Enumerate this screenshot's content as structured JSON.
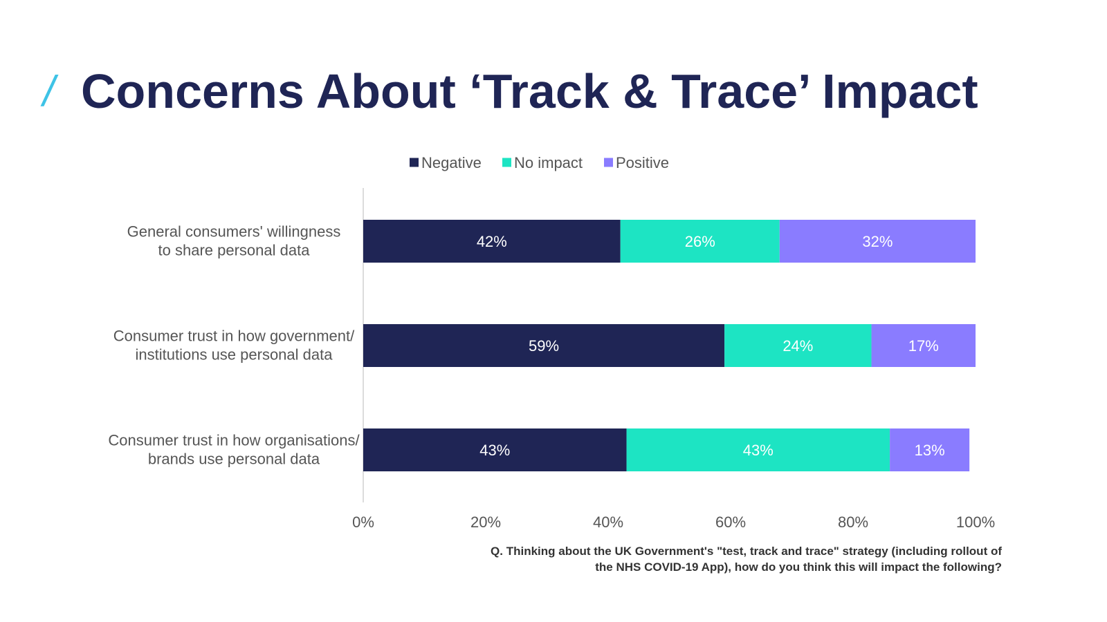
{
  "slide": {
    "slash": "/",
    "title": "Concerns About ‘Track & Trace’ Impact",
    "footnote": "Q. Thinking about the UK Government's \"test, track and trace\" strategy (including rollout of the NHS COVID-19 App), how do you think this will impact the following?"
  },
  "chart_data": {
    "type": "bar",
    "orientation": "horizontal",
    "stacked": true,
    "categories": [
      [
        "General consumers' willingness",
        "to share personal data"
      ],
      [
        "Consumer trust in how government/",
        "institutions use personal data"
      ],
      [
        "Consumer trust in how organisations/",
        "brands use personal data"
      ]
    ],
    "series": [
      {
        "name": "Negative",
        "color": "#1f2555",
        "label_color": "#ffffff",
        "values": [
          42,
          59,
          43
        ],
        "labels": [
          "42%",
          "59%",
          "43%"
        ]
      },
      {
        "name": "No impact",
        "color": "#1de4c3",
        "label_color": "#ffffff",
        "values": [
          26,
          24,
          43
        ],
        "labels": [
          "26%",
          "24%",
          "43%"
        ]
      },
      {
        "name": "Positive",
        "color": "#8a7cff",
        "label_color": "#ffffff",
        "values": [
          32,
          17,
          13
        ],
        "labels": [
          "32%",
          "17%",
          "13%"
        ]
      }
    ],
    "xlim": [
      0,
      100
    ],
    "xticks": [
      "0%",
      "20%",
      "40%",
      "60%",
      "80%",
      "100%"
    ],
    "xtick_values": [
      0,
      20,
      40,
      60,
      80,
      100
    ],
    "legend_position": "top-center",
    "grid": false
  }
}
